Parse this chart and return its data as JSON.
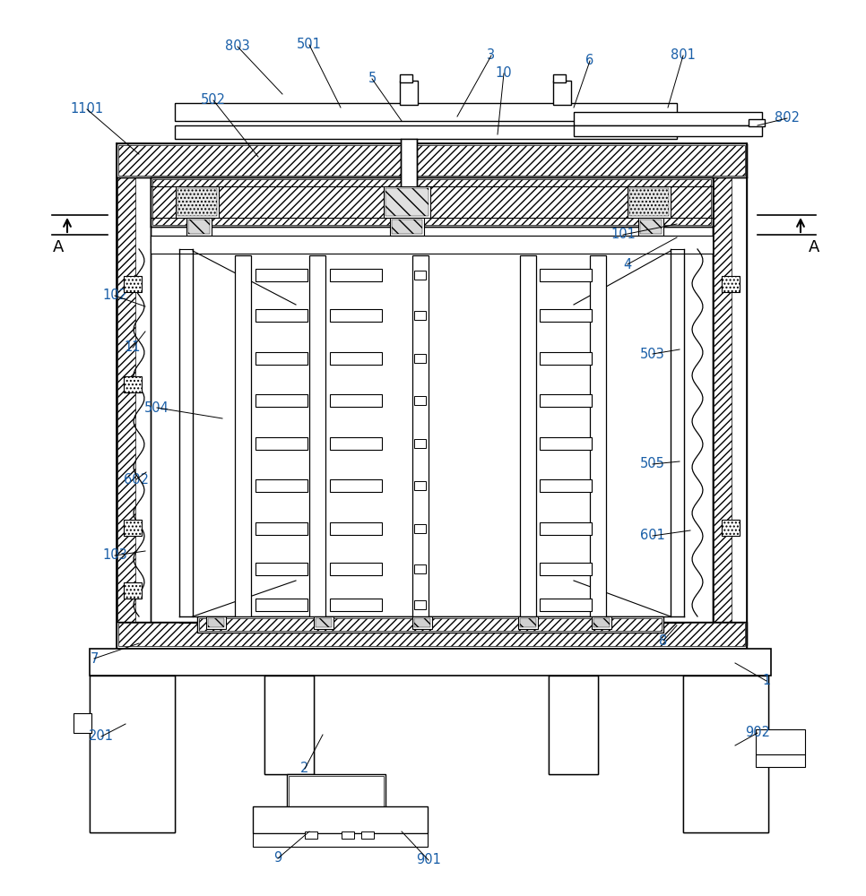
{
  "bg_color": "#ffffff",
  "line_color": "#000000",
  "label_color": "#1a5fa8",
  "label_data": [
    [
      "1",
      855,
      760,
      820,
      740
    ],
    [
      "2",
      340,
      858,
      360,
      820
    ],
    [
      "3",
      548,
      62,
      510,
      130
    ],
    [
      "4",
      700,
      295,
      755,
      265
    ],
    [
      "5",
      415,
      88,
      448,
      135
    ],
    [
      "6",
      658,
      68,
      640,
      120
    ],
    [
      "7",
      105,
      735,
      155,
      718
    ],
    [
      "8",
      740,
      715,
      755,
      698
    ],
    [
      "9",
      310,
      958,
      345,
      928
    ],
    [
      "10",
      562,
      82,
      555,
      150
    ],
    [
      "11",
      148,
      388,
      162,
      370
    ],
    [
      "101",
      695,
      262,
      755,
      250
    ],
    [
      "102",
      128,
      330,
      162,
      342
    ],
    [
      "103",
      128,
      620,
      162,
      615
    ],
    [
      "201",
      113,
      822,
      140,
      808
    ],
    [
      "501",
      345,
      50,
      380,
      120
    ],
    [
      "502",
      238,
      112,
      288,
      175
    ],
    [
      "503",
      728,
      395,
      758,
      390
    ],
    [
      "504",
      175,
      455,
      248,
      467
    ],
    [
      "505",
      728,
      518,
      758,
      515
    ],
    [
      "601",
      728,
      598,
      770,
      592
    ],
    [
      "602",
      152,
      535,
      163,
      527
    ],
    [
      "801",
      762,
      62,
      745,
      120
    ],
    [
      "802",
      878,
      132,
      845,
      140
    ],
    [
      "803",
      265,
      52,
      315,
      105
    ],
    [
      "901",
      478,
      960,
      448,
      928
    ],
    [
      "902",
      845,
      818,
      820,
      832
    ],
    [
      "1101",
      97,
      122,
      155,
      172
    ]
  ]
}
